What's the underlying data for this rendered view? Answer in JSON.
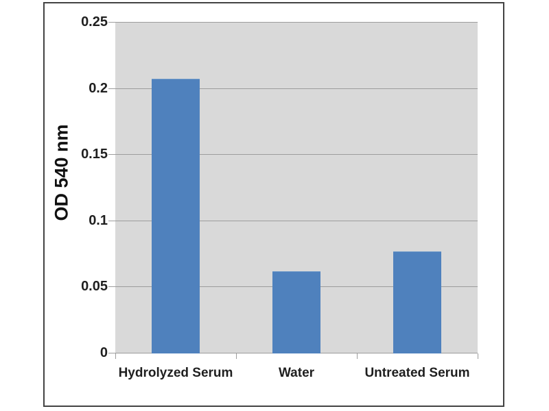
{
  "chart_data": {
    "type": "bar",
    "title": "",
    "categories": [
      "Hydrolyzed Serum",
      "Water",
      "Untreated Serum"
    ],
    "values": [
      0.207,
      0.062,
      0.077
    ],
    "xlabel": "",
    "ylabel": "OD 540 nm",
    "ylim": [
      0,
      0.25
    ],
    "ytick_interval": 0.05,
    "ytick_labels": [
      "0.25",
      "0.2",
      "0.15",
      "0.1",
      "0.05",
      "0"
    ],
    "grid": true,
    "legend": false,
    "colors": {
      "bar": "#4f81bd",
      "plot_background": "#d9d9d9",
      "gridline": "#9c9c9c",
      "frame_border": "#424242",
      "text": "#1f1f1f",
      "page_background": "#ffffff"
    }
  }
}
